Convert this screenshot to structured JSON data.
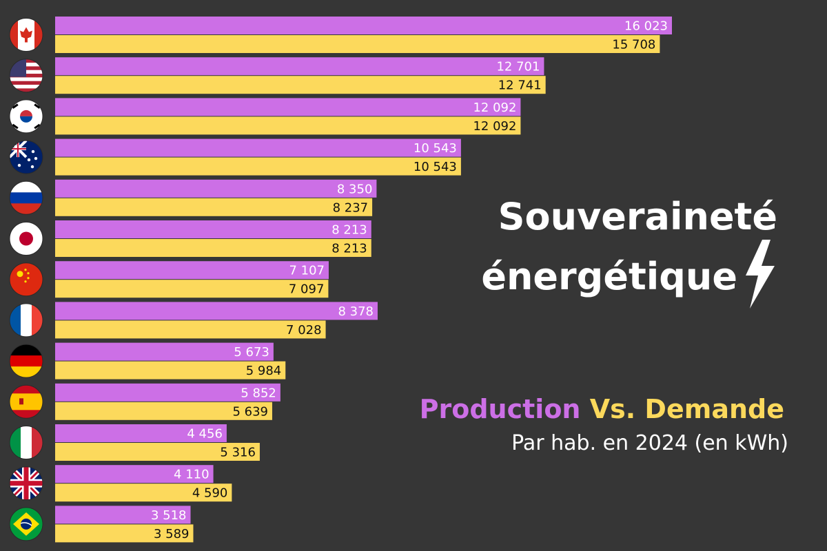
{
  "title": {
    "line1": "Souveraineté",
    "line2": "énergétique"
  },
  "legend": {
    "production": "Production",
    "vs_demand": "Vs. Demande"
  },
  "subtitle": "Par hab. en 2024 (en kWh)",
  "colors": {
    "background": "#363636",
    "production": "#cc6fe6",
    "demand": "#fcd95c",
    "production_label": "#ffffff",
    "demand_label": "#111111"
  },
  "chart_data": {
    "type": "bar",
    "orientation": "horizontal",
    "categories": [
      "Canada",
      "États-Unis",
      "Corée du Sud",
      "Australie",
      "Russie",
      "Japon",
      "Chine",
      "France",
      "Allemagne",
      "Espagne",
      "Italie",
      "Royaume-Uni",
      "Brésil"
    ],
    "flag_icons": [
      "canada-flag-icon",
      "usa-flag-icon",
      "south-korea-flag-icon",
      "australia-flag-icon",
      "russia-flag-icon",
      "japan-flag-icon",
      "china-flag-icon",
      "france-flag-icon",
      "germany-flag-icon",
      "spain-flag-icon",
      "italy-flag-icon",
      "uk-flag-icon",
      "brazil-flag-icon"
    ],
    "series": [
      {
        "name": "Production",
        "values": [
          16023,
          12701,
          12092,
          10543,
          8350,
          8213,
          7107,
          8378,
          5673,
          5852,
          4456,
          4110,
          3518
        ],
        "labels": [
          "16 023",
          "12 701",
          "12 092",
          "10 543",
          "8 350",
          "8 213",
          "7 107",
          "8 378",
          "5 673",
          "5 852",
          "4 456",
          "4 110",
          "3 518"
        ]
      },
      {
        "name": "Demande",
        "values": [
          15708,
          12741,
          12092,
          10543,
          8237,
          8213,
          7097,
          7028,
          5984,
          5639,
          5316,
          4590,
          3589
        ],
        "labels": [
          "15 708",
          "12 741",
          "12 092",
          "10 543",
          "8 237",
          "8 213",
          "7 097",
          "7 028",
          "5 984",
          "5 639",
          "5 316",
          "4 590",
          "3 589"
        ]
      }
    ],
    "unit": "kWh",
    "xlim": [
      0,
      16023
    ],
    "grid": false,
    "legend": "right"
  }
}
